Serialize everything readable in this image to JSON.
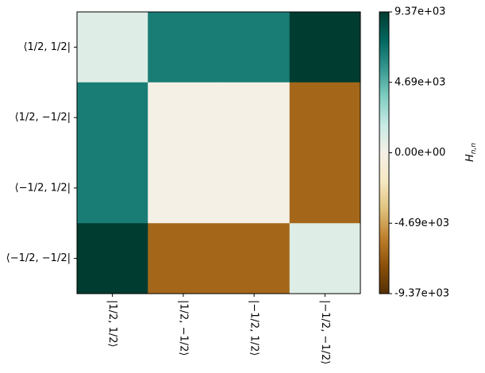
{
  "chart_data": {
    "type": "heatmap",
    "colormap": "BrBG",
    "x_categories": [
      "|1/2, 1/2⟩",
      "|1/2, −1/2⟩",
      "|−1/2, 1/2⟩",
      "|−1/2, −1/2⟩"
    ],
    "y_categories": [
      "⟨1/2, 1/2|",
      "⟨1/2, −1/2|",
      "⟨−1/2, 1/2|",
      "⟨−1/2, −1/2|"
    ],
    "z": [
      [
        940,
        6625,
        6625,
        9370
      ],
      [
        6625,
        0,
        0,
        -6625
      ],
      [
        6625,
        0,
        0,
        -6625
      ],
      [
        9370,
        -6625,
        -6625,
        940
      ]
    ],
    "zlim": [
      -9370,
      9370
    ],
    "zticks": [
      {
        "value": -9370,
        "label": "-9.37e+03"
      },
      {
        "value": -4685,
        "label": "-4.69e+03"
      },
      {
        "value": 0,
        "label": "0.00e+00"
      },
      {
        "value": 4685,
        "label": "4.69e+03"
      },
      {
        "value": 9370,
        "label": "9.37e+03"
      }
    ],
    "colorbar_label": "H",
    "colorbar_label_sub": "n,n"
  }
}
